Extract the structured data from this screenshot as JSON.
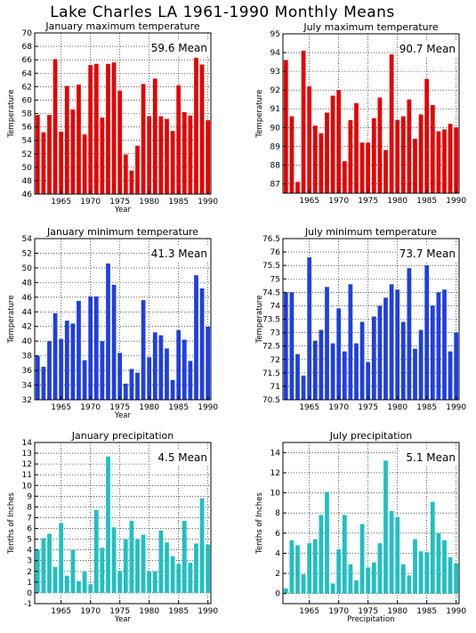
{
  "page_title": "Lake Charles LA   1961-1990 Monthly Means",
  "chart_data": [
    {
      "type": "bar",
      "title": "January maximum temperature",
      "xlabel": "Year",
      "ylabel": "Temperature",
      "ylim": [
        46,
        70
      ],
      "yticks": [
        46,
        48,
        50,
        52,
        54,
        56,
        58,
        60,
        62,
        64,
        66,
        68,
        70
      ],
      "xlim": [
        1960.5,
        1990.5
      ],
      "xticks": [
        1965,
        1970,
        1975,
        1980,
        1985,
        1990
      ],
      "mean_label": "59.6 Mean",
      "color": "#e60000",
      "grid": true,
      "years": [
        1961,
        1962,
        1963,
        1964,
        1965,
        1966,
        1967,
        1968,
        1969,
        1970,
        1971,
        1972,
        1973,
        1974,
        1975,
        1976,
        1977,
        1978,
        1979,
        1980,
        1981,
        1982,
        1983,
        1984,
        1985,
        1986,
        1987,
        1988,
        1989,
        1990
      ],
      "values": [
        57.8,
        55.2,
        57.8,
        66.1,
        55.3,
        62.1,
        58.6,
        62.3,
        54.9,
        65.2,
        65.4,
        57.4,
        65.4,
        65.6,
        61.4,
        51.9,
        49.5,
        53.2,
        62.4,
        57.6,
        63.2,
        57.6,
        57.2,
        55.4,
        62.2,
        58.2,
        57.7,
        66.3,
        65.3,
        57.0
      ]
    },
    {
      "type": "bar",
      "title": "July maximum temperature",
      "xlabel": "",
      "ylabel": "Temperature",
      "ylim": [
        86.5,
        95
      ],
      "yticks": [
        87,
        88,
        89,
        90,
        91,
        92,
        93,
        94,
        95
      ],
      "xlim": [
        1960.5,
        1990.5
      ],
      "xticks": [
        1965,
        1970,
        1975,
        1980,
        1985,
        1990
      ],
      "mean_label": "90.7 Mean",
      "color": "#e60000",
      "grid": true,
      "years": [
        1961,
        1962,
        1963,
        1964,
        1965,
        1966,
        1967,
        1968,
        1969,
        1970,
        1971,
        1972,
        1973,
        1974,
        1975,
        1976,
        1977,
        1978,
        1979,
        1980,
        1981,
        1982,
        1983,
        1984,
        1985,
        1986,
        1987,
        1988,
        1989,
        1990
      ],
      "values": [
        93.6,
        90.6,
        87.1,
        94.1,
        92.2,
        90.1,
        89.7,
        90.8,
        91.7,
        92.0,
        88.2,
        90.4,
        91.3,
        89.2,
        89.2,
        90.5,
        91.6,
        88.8,
        93.9,
        90.4,
        90.6,
        91.5,
        89.4,
        90.7,
        92.6,
        91.2,
        89.8,
        89.9,
        90.2,
        90.0
      ]
    },
    {
      "type": "bar",
      "title": "January minimum temperature",
      "xlabel": "Year",
      "ylabel": "Temperature",
      "ylim": [
        32,
        54
      ],
      "yticks": [
        32,
        34,
        36,
        38,
        40,
        42,
        44,
        46,
        48,
        50,
        52,
        54
      ],
      "xlim": [
        1960.5,
        1990.5
      ],
      "xticks": [
        1965,
        1970,
        1975,
        1980,
        1985,
        1990
      ],
      "mean_label": "41.3 Mean",
      "color": "#1f3fe0",
      "grid": true,
      "years": [
        1961,
        1962,
        1963,
        1964,
        1965,
        1966,
        1967,
        1968,
        1969,
        1970,
        1971,
        1972,
        1973,
        1974,
        1975,
        1976,
        1977,
        1978,
        1979,
        1980,
        1981,
        1982,
        1983,
        1984,
        1985,
        1986,
        1987,
        1988,
        1989,
        1990
      ],
      "values": [
        38.0,
        36.5,
        40.0,
        43.8,
        40.3,
        42.8,
        42.4,
        45.5,
        37.4,
        46.1,
        46.1,
        40.0,
        50.6,
        47.7,
        38.4,
        34.2,
        36.2,
        35.7,
        45.6,
        37.8,
        41.2,
        40.8,
        39.0,
        34.7,
        41.5,
        40.2,
        37.3,
        49.0,
        47.2,
        42.0
      ]
    },
    {
      "type": "bar",
      "title": "July minimum temperature",
      "xlabel": "",
      "ylabel": "Temperature",
      "ylim": [
        70.5,
        76.5
      ],
      "yticks": [
        70.5,
        71,
        71.5,
        72,
        72.5,
        73,
        73.5,
        74,
        74.5,
        75,
        75.5,
        76,
        76.5
      ],
      "xlim": [
        1960.5,
        1990.5
      ],
      "xticks": [
        1965,
        1970,
        1975,
        1980,
        1985,
        1990
      ],
      "mean_label": "73.7 Mean",
      "color": "#1f3fe0",
      "grid": true,
      "years": [
        1961,
        1962,
        1963,
        1964,
        1965,
        1966,
        1967,
        1968,
        1969,
        1970,
        1971,
        1972,
        1973,
        1974,
        1975,
        1976,
        1977,
        1978,
        1979,
        1980,
        1981,
        1982,
        1983,
        1984,
        1985,
        1986,
        1987,
        1988,
        1989,
        1990
      ],
      "values": [
        74.5,
        74.5,
        72.2,
        71.4,
        75.8,
        72.7,
        73.1,
        74.7,
        72.6,
        73.9,
        72.3,
        74.8,
        72.6,
        73.4,
        71.9,
        73.6,
        74.0,
        74.3,
        74.8,
        74.6,
        73.4,
        75.4,
        72.4,
        73.1,
        75.5,
        74.0,
        74.5,
        74.6,
        72.3,
        73.0
      ]
    },
    {
      "type": "bar",
      "title": "January precipitation",
      "xlabel": "Year",
      "ylabel": "Tenths of Inches",
      "ylim": [
        -1,
        14
      ],
      "yticks": [
        -1,
        0,
        1,
        2,
        3,
        4,
        5,
        6,
        7,
        8,
        9,
        10,
        11,
        12,
        13,
        14
      ],
      "xlim": [
        1960.5,
        1990.5
      ],
      "xticks": [
        1965,
        1970,
        1975,
        1980,
        1985,
        1990
      ],
      "mean_label": "4.5 Mean",
      "color": "#1fc0c0",
      "grid": true,
      "years": [
        1961,
        1962,
        1963,
        1964,
        1965,
        1966,
        1967,
        1968,
        1969,
        1970,
        1971,
        1972,
        1973,
        1974,
        1975,
        1976,
        1977,
        1978,
        1979,
        1980,
        1981,
        1982,
        1983,
        1984,
        1985,
        1986,
        1987,
        1988,
        1989,
        1990
      ],
      "values": [
        4.0,
        5.1,
        5.5,
        2.4,
        6.5,
        1.6,
        4.0,
        1.1,
        2.0,
        0.8,
        7.7,
        4.2,
        12.7,
        6.1,
        2.0,
        5.0,
        6.7,
        5.0,
        5.4,
        2.0,
        2.0,
        5.8,
        4.7,
        3.4,
        2.7,
        6.7,
        2.8,
        4.6,
        8.8,
        4.5
      ]
    },
    {
      "type": "bar",
      "title": "July precipitation",
      "xlabel": "Precipitation",
      "ylabel": "Tenths of Inches",
      "ylim": [
        -1,
        15
      ],
      "yticks": [
        0,
        2,
        4,
        6,
        8,
        10,
        12,
        14
      ],
      "xlim": [
        1960.5,
        1990.5
      ],
      "xticks": [
        1965,
        1970,
        1975,
        1980,
        1985,
        1990
      ],
      "mean_label": "5.1 Mean",
      "color": "#1fc0c0",
      "grid": true,
      "years": [
        1961,
        1962,
        1963,
        1964,
        1965,
        1966,
        1967,
        1968,
        1969,
        1970,
        1971,
        1972,
        1973,
        1974,
        1975,
        1976,
        1977,
        1978,
        1979,
        1980,
        1981,
        1982,
        1983,
        1984,
        1985,
        1986,
        1987,
        1988,
        1989,
        1990
      ],
      "values": [
        0.5,
        5.3,
        4.8,
        1.9,
        5.0,
        5.4,
        7.8,
        10.1,
        1.0,
        4.4,
        7.8,
        2.9,
        1.3,
        6.9,
        2.6,
        3.1,
        5.0,
        13.2,
        8.2,
        7.6,
        2.9,
        1.8,
        5.4,
        4.2,
        4.1,
        9.1,
        6.0,
        5.3,
        3.6,
        3.0
      ]
    }
  ]
}
